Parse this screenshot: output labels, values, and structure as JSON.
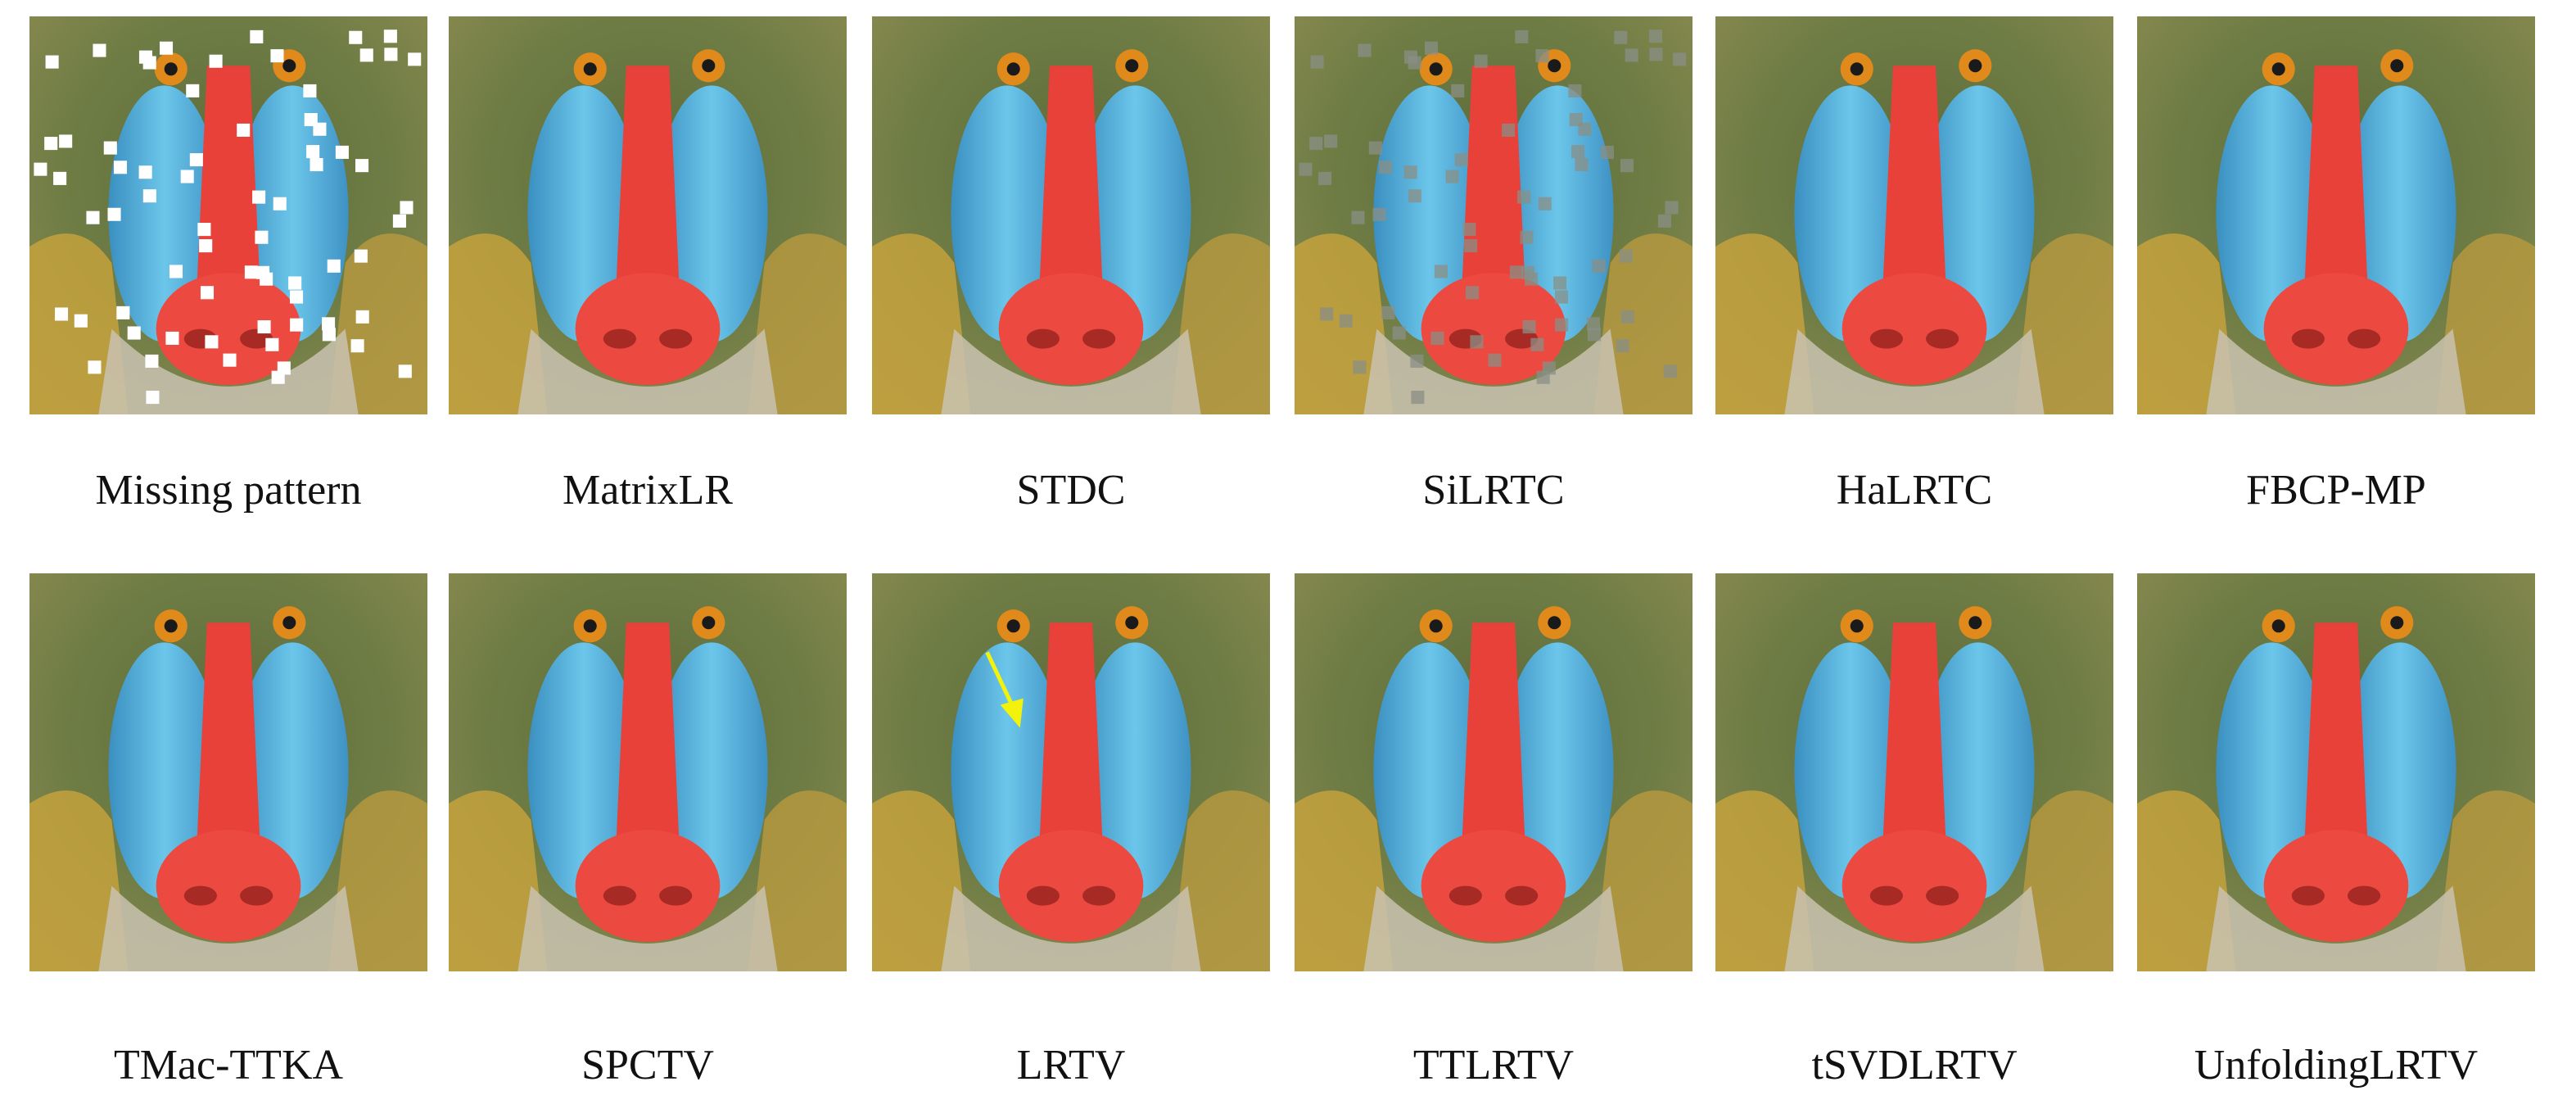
{
  "panels": [
    {
      "caption": "Missing pattern"
    },
    {
      "caption": "MatrixLR"
    },
    {
      "caption": "STDC"
    },
    {
      "caption": "SiLRTC"
    },
    {
      "caption": "HaLRTC"
    },
    {
      "caption": "FBCP-MP"
    },
    {
      "caption": "TMac-TTKA"
    },
    {
      "caption": "SPCTV"
    },
    {
      "caption": "LRTV"
    },
    {
      "caption": "TTLRTV"
    },
    {
      "caption": "tSVDLRTV"
    },
    {
      "caption": "UnfoldingLRTV"
    }
  ]
}
